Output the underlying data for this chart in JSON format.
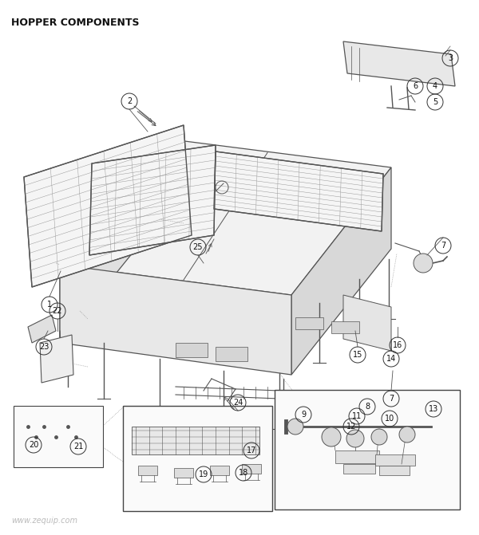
{
  "title": "HOPPER COMPONENTS",
  "watermark": "www.zequip.com",
  "bg_color": "#ffffff",
  "line_color": "#555555",
  "figsize": [
    6.0,
    6.71
  ],
  "dpi": 100
}
